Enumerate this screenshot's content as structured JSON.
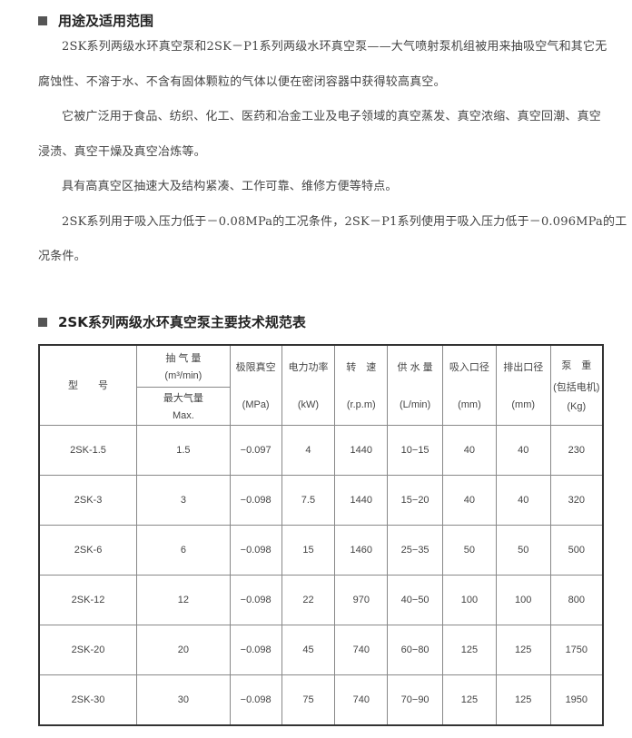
{
  "section1": {
    "title": "用途及适用范围",
    "paragraphs": [
      [
        "2SK系列两级水环真空泵和2SK－P1系列两级水环真空泵——大气喷射泵机组被用来抽吸空气和其它无",
        "腐蚀性、不溶于水、不含有固体颗粒的气体以便在密闭容器中获得较高真空。"
      ],
      [
        "它被广泛用于食品、纺织、化工、医药和冶金工业及电子领域的真空蒸发、真空浓缩、真空回潮、真空",
        "浸渍、真空干燥及真空冶炼等。"
      ],
      [
        "具有高真空区抽速大及结构紧凑、工作可靠、维修方便等特点。"
      ],
      [
        "2SK系列用于吸入压力低于－0.08MPa的工况条件，2SK－P1系列使用于吸入压力低于－0.096MPa的工",
        "况条件。"
      ]
    ]
  },
  "section2": {
    "title": "2SK系列两级水环真空泵主要技术规范表"
  },
  "table": {
    "headers": {
      "model": "型　　号",
      "flow_top": "抽 气 量",
      "flow_unit": "(m³/min)",
      "flow_sub": "最大气量",
      "flow_max": "Max.",
      "cols": [
        [
          "极限真空",
          "(MPa)"
        ],
        [
          "电力功率",
          "(kW)"
        ],
        [
          "转　速",
          "(r.p.m)"
        ],
        [
          "供 水 量",
          "(L/min)"
        ],
        [
          "吸入口径",
          "(mm)"
        ],
        [
          "排出口径",
          "(mm)"
        ],
        [
          "泵　重",
          "(包括电机)",
          "(Kg)"
        ]
      ]
    },
    "rows": [
      [
        "2SK-1.5",
        "1.5",
        "−0.097",
        "4",
        "1440",
        "10−15",
        "40",
        "40",
        "230"
      ],
      [
        "2SK-3",
        "3",
        "−0.098",
        "7.5",
        "1440",
        "15−20",
        "40",
        "40",
        "320"
      ],
      [
        "2SK-6",
        "6",
        "−0.098",
        "15",
        "1460",
        "25−35",
        "50",
        "50",
        "500"
      ],
      [
        "2SK-12",
        "12",
        "−0.098",
        "22",
        "970",
        "40−50",
        "100",
        "100",
        "800"
      ],
      [
        "2SK-20",
        "20",
        "−0.098",
        "45",
        "740",
        "60−80",
        "125",
        "125",
        "1750"
      ],
      [
        "2SK-30",
        "30",
        "−0.098",
        "75",
        "740",
        "70−90",
        "125",
        "125",
        "1950"
      ]
    ]
  }
}
